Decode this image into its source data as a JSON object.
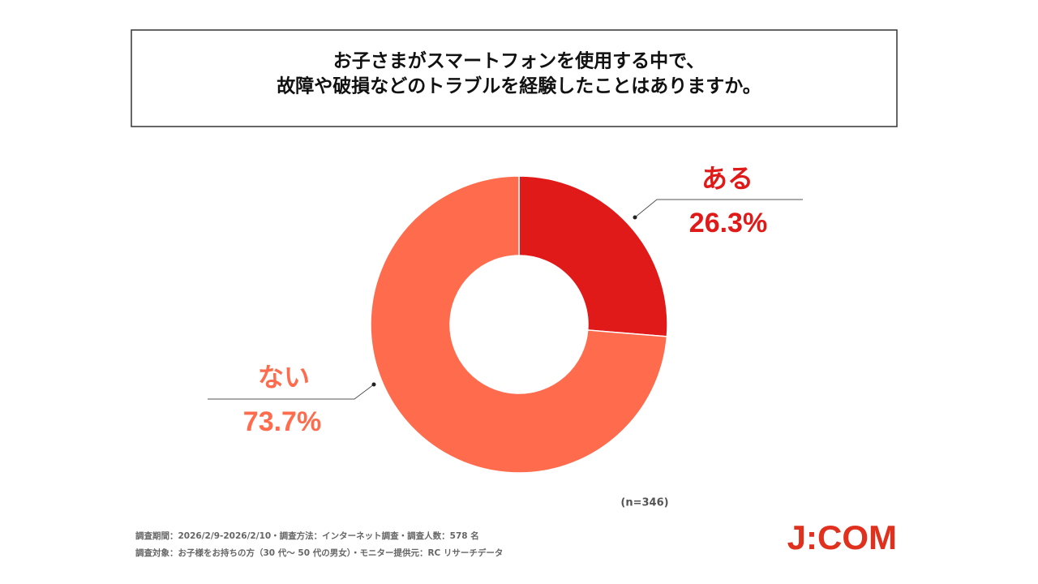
{
  "chart_data": {
    "type": "donut",
    "title": [
      "お子さまがスマートフォンを使用する中で、",
      "故障や破損などのトラブルを経験したことはありますか。"
    ],
    "categories": [
      "ある",
      "ない"
    ],
    "values": [
      26.3,
      73.7
    ],
    "value_labels": [
      "26.3%",
      "73.7%"
    ],
    "colors": [
      "#e01919",
      "#ff6b4d"
    ],
    "sample_note": "(n=346)",
    "footnotes": [
      "調査期間：2026/2/9-2026/2/10・調査方法：インターネット調査・調査人数：578 名",
      "調査対象：お子様をお持ちの方（30 代～ 50 代の男女）・モニター提供元：RC リサーチデータ"
    ],
    "logo": "J:COM"
  }
}
